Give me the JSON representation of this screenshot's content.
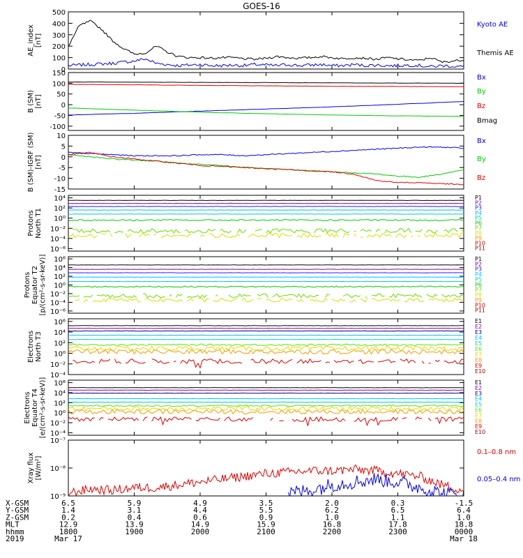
{
  "title": "GOES-16",
  "colors": {
    "black": "#000000",
    "blue": "#0000dd",
    "green": "#00cc00",
    "red": "#dd0000",
    "navy": "#000080",
    "purple": "#8800aa",
    "royal": "#2222ff",
    "cyan": "#00bbff",
    "teal": "#00cccc",
    "lime": "#66dd00",
    "yellow": "#dddd00",
    "orange": "#ff9900",
    "darkred": "#cc0000",
    "brick": "#aa0000"
  },
  "chart_data": [
    {
      "type": "line",
      "ylabel": [
        "AE_index",
        "[nT]"
      ],
      "yscale": "linear",
      "ylim": [
        0,
        500
      ],
      "yticks": [
        0,
        100,
        200,
        300,
        400,
        500
      ],
      "ytick_labels": [
        "0",
        "100",
        "200",
        "300",
        "400",
        "500"
      ],
      "legend": [
        "Kyoto AE",
        "Themis AE"
      ],
      "x": [
        0,
        10,
        20,
        30,
        40,
        50,
        60,
        70,
        80,
        90,
        100,
        110,
        120,
        130,
        140,
        150,
        160,
        170,
        180,
        190,
        200,
        210,
        220,
        230,
        240,
        250,
        260,
        270,
        280,
        290,
        300,
        310,
        320,
        330,
        340,
        350,
        360
      ],
      "series": [
        {
          "name": "Kyoto AE",
          "color": "blue",
          "values": [
            30,
            35,
            40,
            45,
            50,
            60,
            70,
            90,
            50,
            40,
            30,
            35,
            40,
            30,
            30,
            35,
            30,
            40,
            35,
            30,
            40,
            30,
            35,
            40,
            30,
            30,
            40,
            30,
            35,
            30,
            30,
            35,
            30,
            20,
            30,
            25,
            20
          ]
        },
        {
          "name": "Themis AE",
          "color": "black",
          "values": [
            200,
            380,
            420,
            350,
            250,
            180,
            130,
            140,
            200,
            150,
            110,
            100,
            100,
            95,
            100,
            100,
            90,
            85,
            95,
            110,
            100,
            95,
            100,
            110,
            100,
            90,
            100,
            95,
            85,
            100,
            90,
            80,
            75,
            100,
            60,
            70,
            80
          ]
        }
      ]
    },
    {
      "type": "line",
      "ylabel": [
        "B (SM)",
        "[nT]"
      ],
      "yscale": "linear",
      "ylim": [
        -120,
        150
      ],
      "yticks": [
        -100,
        -50,
        0,
        50,
        100,
        150
      ],
      "ytick_labels": [
        "-100",
        "-50",
        "0",
        "50",
        "100",
        "150"
      ],
      "legend": [
        "Bx",
        "By",
        "Bz",
        "Bmag"
      ],
      "x": [
        0,
        60,
        120,
        180,
        240,
        300,
        360
      ],
      "series": [
        {
          "name": "Bx",
          "color": "blue",
          "values": [
            -48,
            -40,
            -30,
            -20,
            -10,
            2,
            15
          ]
        },
        {
          "name": "By",
          "color": "green",
          "values": [
            -15,
            -25,
            -35,
            -42,
            -48,
            -52,
            -55
          ]
        },
        {
          "name": "Bz",
          "color": "red",
          "values": [
            95,
            93,
            90,
            88,
            86,
            85,
            84
          ]
        },
        {
          "name": "Bmag",
          "color": "black",
          "values": [
            106,
            105,
            104,
            103,
            102,
            101,
            100
          ]
        }
      ]
    },
    {
      "type": "line",
      "ylabel": [
        "B (SM)-IGRF (SM)",
        "[nT]"
      ],
      "yscale": "linear",
      "ylim": [
        -15,
        10
      ],
      "yticks": [
        -15,
        -10,
        -5,
        0,
        5,
        10
      ],
      "ytick_labels": [
        "-15",
        "-10",
        "-5",
        "0",
        "5",
        "10"
      ],
      "legend": [
        "Bx",
        "By",
        "Bz"
      ],
      "x": [
        0,
        20,
        40,
        60,
        80,
        100,
        120,
        140,
        160,
        180,
        200,
        220,
        240,
        260,
        280,
        300,
        320,
        340,
        360
      ],
      "series": [
        {
          "name": "Bx",
          "color": "blue",
          "values": [
            2,
            1.5,
            1,
            0.5,
            0.5,
            0.5,
            1,
            1,
            0.5,
            1,
            1.5,
            2,
            2.5,
            3,
            3.5,
            4,
            4.5,
            4.5,
            4
          ]
        },
        {
          "name": "By",
          "color": "green",
          "values": [
            1,
            0,
            -1,
            -1.5,
            -2,
            -3,
            -3.5,
            -4,
            -5,
            -5.5,
            -6,
            -6.5,
            -7,
            -7.5,
            -8,
            -9,
            -9.5,
            -8,
            -6
          ]
        },
        {
          "name": "Bz",
          "color": "red",
          "values": [
            1,
            2,
            0,
            -1,
            -2,
            -3,
            -4,
            -4.5,
            -5,
            -5.5,
            -6,
            -6.5,
            -7,
            -8,
            -11,
            -12,
            -12,
            -12.5,
            -13
          ]
        }
      ]
    },
    {
      "type": "line",
      "ylabel": [
        "Protons",
        "North T1"
      ],
      "yscale": "log",
      "ylim": [
        -6.5,
        4.5
      ],
      "yticks": [
        4,
        2,
        0,
        -2,
        -4,
        -6
      ],
      "ytick_labels": [
        "10⁴",
        "10²",
        "10⁰",
        "10⁻²",
        "10⁻⁴",
        "10⁻⁶"
      ],
      "legend": [
        "P1",
        "P2",
        "P3",
        "P4",
        "P5",
        "P6",
        "P7",
        "P8",
        "P9",
        "P10",
        "P11"
      ],
      "legend_colors": [
        "black",
        "purple",
        "royal",
        "cyan",
        "teal",
        "green",
        "lime",
        "yellow",
        "orange",
        "darkred",
        "brick"
      ],
      "levels": [
        3.5,
        2.9,
        2.3,
        1.6,
        0.8,
        -0.4,
        -2.5,
        -3.4,
        null,
        null,
        null
      ]
    },
    {
      "type": "line",
      "ylabel": [
        "Protons",
        "Equator T2",
        "[p/(cm²-s-sr-keV)]"
      ],
      "yscale": "log",
      "ylim": [
        -6.5,
        6.5
      ],
      "yticks": [
        6,
        4,
        2,
        0,
        -2,
        -4,
        -6
      ],
      "ytick_labels": [
        "10⁶",
        "10⁴",
        "10²",
        "10⁰",
        "10⁻²",
        "10⁻⁴",
        "10⁻⁶"
      ],
      "legend": [
        "P1",
        "P2",
        "P3",
        "P4",
        "P5",
        "P6",
        "P7",
        "P8",
        "P9",
        "P10",
        "P11"
      ],
      "legend_colors": [
        "black",
        "purple",
        "royal",
        "cyan",
        "teal",
        "green",
        "lime",
        "yellow",
        "orange",
        "darkred",
        "brick"
      ],
      "levels": [
        4.6,
        3.6,
        2.8,
        1.8,
        0.8,
        -0.4,
        -2.5,
        -3.5,
        null,
        null,
        null
      ]
    },
    {
      "type": "line",
      "ylabel": [
        "Electrons",
        "North T3"
      ],
      "yscale": "log",
      "ylim": [
        -4,
        6.5
      ],
      "yticks": [
        6,
        4,
        2,
        0,
        -2,
        -4
      ],
      "ytick_labels": [
        "10⁶",
        "10⁴",
        "10²",
        "10⁰",
        "10⁻²",
        "10⁻⁴"
      ],
      "legend": [
        "E1",
        "E2",
        "E3",
        "E4",
        "E5",
        "E6",
        "E7",
        "E8",
        "E9",
        "E10"
      ],
      "legend_colors": [
        "black",
        "purple",
        "navy",
        "cyan",
        "teal",
        "lime",
        "yellow",
        "orange",
        "red",
        "brick"
      ],
      "levels": [
        5.2,
        4.7,
        4.2,
        3.4,
        2.6,
        1.6,
        0.9,
        0.3,
        -1.5,
        null
      ]
    },
    {
      "type": "line",
      "ylabel": [
        "Electrons",
        "Equator T4",
        "[e/(cm²-s-sr-keV)]"
      ],
      "yscale": "log",
      "ylim": [
        -4.5,
        6.5
      ],
      "yticks": [
        6,
        4,
        2,
        0,
        -2,
        -4
      ],
      "ytick_labels": [
        "10⁶",
        "10⁴",
        "10²",
        "10⁰",
        "10⁻²",
        "10⁻⁴"
      ],
      "legend": [
        "E1",
        "E2",
        "E3",
        "E4",
        "E5",
        "E6",
        "E7",
        "E8",
        "E9",
        "E10"
      ],
      "legend_colors": [
        "black",
        "purple",
        "navy",
        "cyan",
        "teal",
        "lime",
        "yellow",
        "orange",
        "red",
        "brick"
      ],
      "levels": [
        5.0,
        4.5,
        3.9,
        2.8,
        2.1,
        1.4,
        0.8,
        0.2,
        -1.3,
        null
      ]
    },
    {
      "type": "line",
      "ylabel": [
        "Xray flux",
        "[W/m²]"
      ],
      "yscale": "log",
      "ylim": [
        -9,
        -7
      ],
      "yticks": [
        -7,
        -8,
        -9
      ],
      "ytick_labels": [
        "10⁻⁷",
        "10⁻⁸",
        "10⁻⁹"
      ],
      "legend": [
        "0.1–0.8 nm",
        "0.05–0.4 nm"
      ],
      "x": [
        0,
        20,
        40,
        60,
        80,
        100,
        120,
        140,
        160,
        180,
        200,
        220,
        240,
        260,
        280,
        300,
        320,
        340,
        360
      ],
      "series": [
        {
          "name": "0.1–0.8 nm",
          "color": "red",
          "values": [
            -8.9,
            -8.75,
            -8.8,
            -8.7,
            -8.7,
            -8.6,
            -8.5,
            -8.4,
            -8.3,
            -8.2,
            -8.15,
            -8.1,
            -8.1,
            -8.05,
            -8.1,
            -8.2,
            -8.3,
            -8.6,
            -8.8
          ]
        },
        {
          "name": "0.05–0.4 nm",
          "color": "blue",
          "values": [
            null,
            null,
            null,
            null,
            null,
            null,
            null,
            null,
            null,
            null,
            -8.9,
            -8.8,
            -8.6,
            -8.5,
            -8.4,
            -8.5,
            -8.7,
            -8.9,
            -9.0
          ]
        }
      ]
    }
  ],
  "xaxis": {
    "min": 0,
    "max": 360,
    "tick_minutes": [
      0,
      60,
      120,
      180,
      240,
      300,
      360
    ],
    "rows": [
      {
        "label": "X-GSM",
        "values": [
          "6.5",
          "5.9",
          "4.9",
          "3.5",
          "2.0",
          "0.3",
          "-1.5"
        ]
      },
      {
        "label": "Y-GSM",
        "values": [
          "1.4",
          "3.1",
          "4.4",
          "5.5",
          "6.2",
          "6.5",
          "6.4"
        ]
      },
      {
        "label": "Z-GSM",
        "values": [
          "0.2",
          "0.4",
          "0.6",
          "0.9",
          "1.0",
          "1.1",
          "1.0"
        ]
      },
      {
        "label": "MLT",
        "values": [
          "12.9",
          "13.9",
          "14.9",
          "15.9",
          "16.8",
          "17.8",
          "18.8"
        ]
      },
      {
        "label": "hhmm",
        "values": [
          "1800",
          "1900",
          "2000",
          "2100",
          "2200",
          "2300",
          "0000"
        ]
      },
      {
        "label": "2019",
        "values": [
          "Mar 17",
          "",
          "",
          "",
          "",
          "",
          "Mar 18"
        ]
      }
    ]
  }
}
